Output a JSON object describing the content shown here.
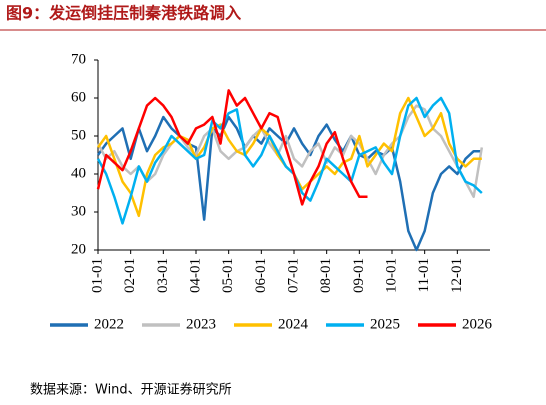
{
  "chart_data": {
    "type": "line",
    "title": "图9：发运倒挂压制秦港铁路调入",
    "source": "数据来源：Wind、开源证券研究所",
    "categories": [
      "01-01",
      null,
      null,
      null,
      "02-01",
      null,
      null,
      null,
      "03-01",
      null,
      null,
      null,
      "04-01",
      null,
      null,
      null,
      "05-01",
      null,
      null,
      null,
      "06-01",
      null,
      null,
      null,
      "07-01",
      null,
      null,
      null,
      "08-01",
      null,
      null,
      null,
      "09-01",
      null,
      null,
      null,
      "10-01",
      null,
      null,
      null,
      "11-01",
      null,
      null,
      null,
      "12-01",
      null,
      null,
      null
    ],
    "ylim": [
      20,
      70
    ],
    "yticks": [
      20,
      30,
      40,
      50,
      60,
      70
    ],
    "grid": false,
    "legend": "bottom",
    "series": [
      {
        "name": "2022",
        "color": "#1f6fb4",
        "values": [
          45,
          48,
          50,
          52,
          44,
          52,
          46,
          50,
          55,
          52,
          50,
          48,
          47,
          28,
          52,
          50,
          55,
          52,
          47,
          50,
          48,
          52,
          50,
          48,
          52,
          48,
          45,
          50,
          53,
          49,
          46,
          50,
          45,
          44,
          46,
          45,
          47,
          38,
          25,
          20,
          25,
          35,
          40,
          42,
          40,
          44,
          46,
          46
        ]
      },
      {
        "name": "2023",
        "color": "#c0c0c0",
        "values": [
          48,
          44,
          46,
          42,
          40,
          42,
          38,
          40,
          45,
          48,
          50,
          47,
          45,
          50,
          52,
          46,
          44,
          46,
          47,
          50,
          52,
          48,
          45,
          50,
          44,
          42,
          46,
          48,
          43,
          47,
          45,
          50,
          48,
          44,
          40,
          45,
          48,
          50,
          55,
          58,
          57,
          52,
          50,
          46,
          42,
          38,
          34,
          47
        ]
      },
      {
        "name": "2024",
        "color": "#ffc000",
        "values": [
          47,
          50,
          44,
          38,
          35,
          29,
          40,
          45,
          47,
          48,
          50,
          49,
          44,
          47,
          52,
          53,
          49,
          46,
          45,
          48,
          52,
          50,
          45,
          42,
          40,
          36,
          38,
          40,
          42,
          40,
          43,
          44,
          50,
          42,
          45,
          48,
          46,
          56,
          60,
          55,
          50,
          52,
          56,
          48,
          44,
          42,
          44,
          44
        ]
      },
      {
        "name": "2025",
        "color": "#00b0f0",
        "values": [
          44,
          40,
          34,
          27,
          34,
          42,
          38,
          43,
          46,
          50,
          48,
          46,
          44,
          45,
          54,
          52,
          56,
          57,
          45,
          42,
          45,
          50,
          46,
          42,
          40,
          35,
          33,
          38,
          44,
          42,
          40,
          38,
          45,
          46,
          47,
          43,
          40,
          50,
          58,
          60,
          55,
          58,
          60,
          56,
          42,
          38,
          37,
          35
        ]
      },
      {
        "name": "2026",
        "color": "#ff0000",
        "values": [
          36,
          45,
          43,
          41,
          46,
          52,
          58,
          60,
          58,
          55,
          50,
          48,
          52,
          53,
          55,
          48,
          62,
          58,
          60,
          56,
          52,
          56,
          55,
          47,
          40,
          32,
          38,
          42,
          48,
          51,
          44,
          38,
          34,
          34,
          null,
          null,
          null,
          null,
          null,
          null,
          null,
          null,
          null,
          null,
          null,
          null,
          null,
          null
        ]
      }
    ]
  }
}
